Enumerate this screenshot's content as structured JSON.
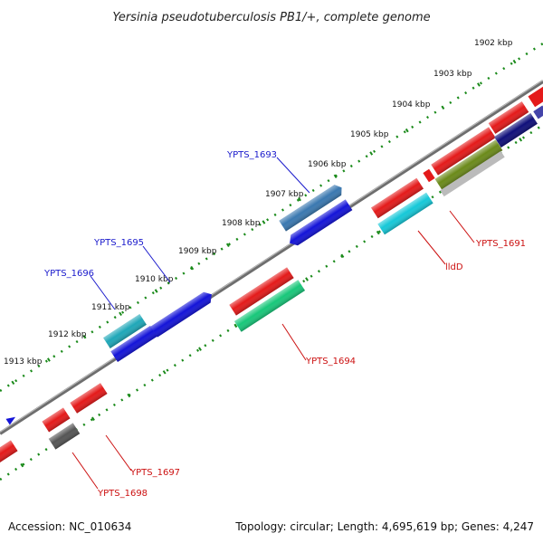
{
  "title": "Yersinia pseudotuberculosis PB1/+, complete genome",
  "accession": "Accession: NC_010634",
  "summary": "Topology: circular; Length: 4,695,619 bp; Genes: 4,247",
  "ticks": [
    "1902 kbp",
    "1903 kbp",
    "1904 kbp",
    "1905 kbp",
    "1906 kbp",
    "1907 kbp",
    "1908 kbp",
    "1909 kbp",
    "1910 kbp",
    "1911 kbp",
    "1912 kbp",
    "1913 kbp"
  ],
  "labels": {
    "ypts1693": "YPTS_1693",
    "ypts1695": "YPTS_1695",
    "ypts1696": "YPTS_1696",
    "ypts1691": "YPTS_1691",
    "lldd": "lldD",
    "ypts1694": "YPTS_1694",
    "ypts1697": "YPTS_1697",
    "ypts1698": "YPTS_1698"
  },
  "colors": {
    "backbone": "#6e6e6e",
    "ruler": "#1a8a1a",
    "red": "#e41a1a",
    "blue": "#1414d8",
    "cyan": "#16c8d8",
    "teal": "#1fa7b8",
    "steelblue": "#3a78b0",
    "green": "#18c77a",
    "navy": "#0f0f7a",
    "olive": "#6b8a1a",
    "gray": "#666666",
    "label_blue": "#1a1acc",
    "label_red": "#cc1111"
  }
}
